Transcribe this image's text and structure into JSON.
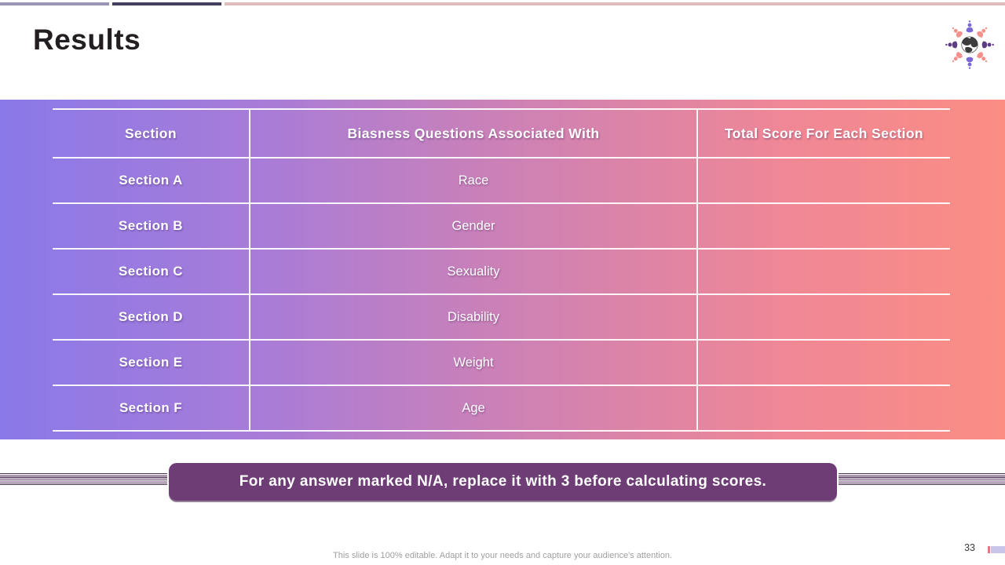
{
  "slide": {
    "title": "Results",
    "page_number": "33",
    "footer_note": "This slide is 100% editable. Adapt it to your needs and capture your audience's attention."
  },
  "table": {
    "columns": [
      "Section",
      "Biasness Questions Associated With",
      "Total Score For Each Section"
    ],
    "rows": [
      {
        "section": "Section A",
        "question": "Race",
        "score": ""
      },
      {
        "section": "Section B",
        "question": "Gender",
        "score": ""
      },
      {
        "section": "Section C",
        "question": "Sexuality",
        "score": ""
      },
      {
        "section": "Section D",
        "question": "Disability",
        "score": ""
      },
      {
        "section": "Section E",
        "question": "Weight",
        "score": ""
      },
      {
        "section": "Section F",
        "question": "Age",
        "score": ""
      }
    ]
  },
  "banner": {
    "text": "For any answer marked N/A, replace it with 3 before calculating scores."
  },
  "icons": {
    "logo": "globe-people-icon"
  },
  "colors": {
    "band_left": "#8a79e8",
    "band_right": "#fb8d83",
    "banner_background": "#6e3d76",
    "stripe_line": "#53315a",
    "topbar_1": "#9a94b5",
    "topbar_2": "#453e5e",
    "topbar_3": "#e2bcba",
    "accent_purple": "#7b68d6",
    "accent_dark_purple": "#5e3d85",
    "accent_salmon": "#f4918c"
  }
}
